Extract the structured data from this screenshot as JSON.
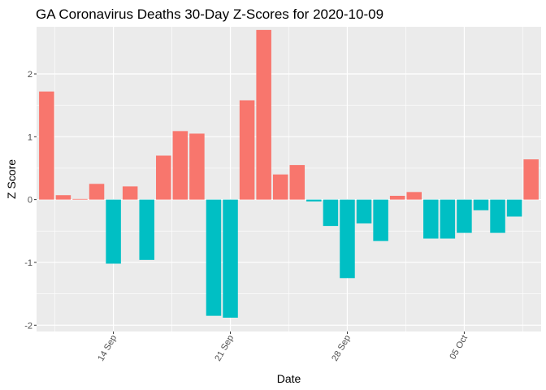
{
  "chart_data": {
    "type": "bar",
    "title": "GA Coronavirus Deaths 30-Day Z-Scores for 2020-10-09",
    "xlabel": "Date",
    "ylabel": "Z Score",
    "ylim": [
      -2.1,
      2.75
    ],
    "yticks": [
      -2,
      -1,
      0,
      1,
      2
    ],
    "xticks": [
      {
        "label": "14 Sep",
        "day_index": 4
      },
      {
        "label": "21 Sep",
        "day_index": 11
      },
      {
        "label": "28 Sep",
        "day_index": 18
      },
      {
        "label": "05 Oct",
        "day_index": 25
      }
    ],
    "x_start_date": "2020-09-10",
    "x_end_date": "2020-10-09",
    "values": [
      1.72,
      0.07,
      0.01,
      0.25,
      -1.02,
      0.21,
      -0.96,
      0.7,
      1.09,
      1.05,
      -1.85,
      -1.88,
      1.58,
      2.7,
      0.4,
      0.55,
      -0.03,
      -0.42,
      -1.25,
      -0.38,
      -0.66,
      0.06,
      0.12,
      -0.62,
      -0.62,
      -0.53,
      -0.17,
      -0.53,
      -0.27,
      0.64
    ],
    "colors": {
      "positive": "#F8766D",
      "negative": "#00BFC4",
      "panel": "#EBEBEB",
      "grid": "#FFFFFF"
    }
  }
}
